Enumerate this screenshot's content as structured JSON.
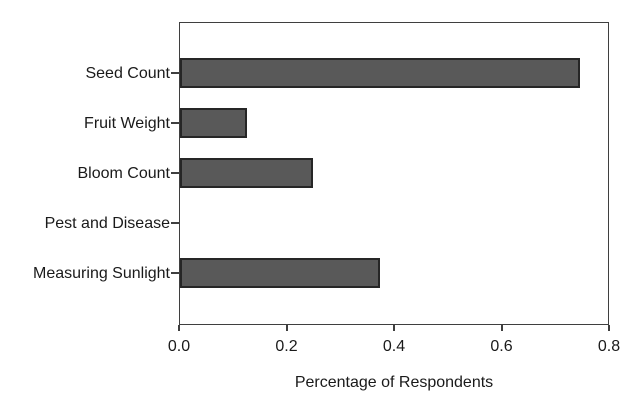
{
  "chart_data": {
    "type": "bar",
    "orientation": "horizontal",
    "title": "",
    "xlabel": "Percentage of Respondents",
    "ylabel": "",
    "categories": [
      "Seed Count",
      "Fruit Weight",
      "Bloom Count",
      "Pest and Disease",
      "Measuring Sunlight"
    ],
    "values": [
      0.75,
      0.125,
      0.25,
      0,
      0.375
    ],
    "xlim": [
      0.0,
      0.8
    ],
    "xticks": [
      0.0,
      0.2,
      0.4,
      0.6,
      0.8
    ],
    "xtick_labels": [
      "0.0",
      "0.2",
      "0.4",
      "0.6",
      "0.8"
    ],
    "grid": false,
    "legend": null,
    "colors": {
      "bar_fill": "#595959",
      "bar_border": "#262626",
      "plot_border": "#3f3f3f",
      "text": "#1a1a1a",
      "background": "#ffffff"
    }
  }
}
